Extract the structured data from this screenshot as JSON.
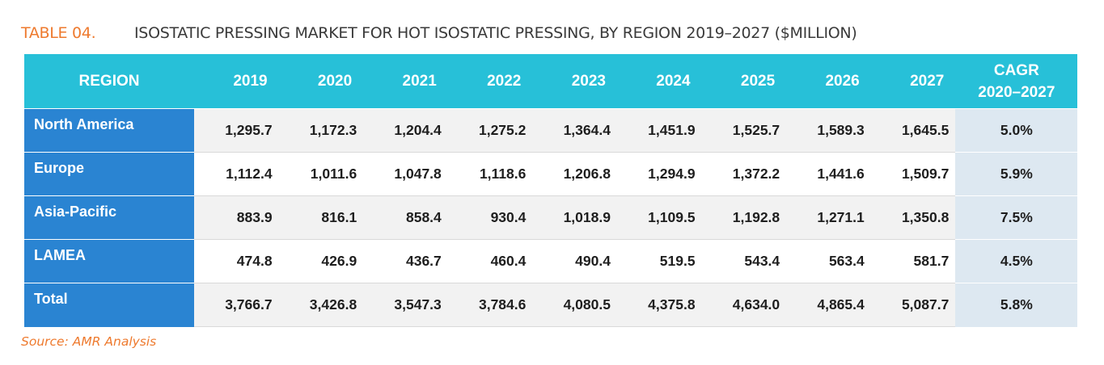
{
  "header": {
    "table_number": "TABLE 04.",
    "title": "ISOSTATIC PRESSING MARKET FOR HOT ISOSTATIC PRESSING, BY REGION 2019–2027 ($MILLION)"
  },
  "source": "Source: AMR Analysis",
  "colors": {
    "header_bg": "#27c0d8",
    "region_bg": "#2a84d2",
    "cagr_bg": "#dde8f1",
    "accent_orange": "#ee7a2e"
  },
  "chart_data": {
    "type": "table",
    "title": "ISOSTATIC PRESSING MARKET FOR HOT ISOSTATIC PRESSING, BY REGION 2019–2027 ($MILLION)",
    "columns": {
      "region": "REGION",
      "years": [
        "2019",
        "2020",
        "2021",
        "2022",
        "2023",
        "2024",
        "2025",
        "2026",
        "2027"
      ],
      "cagr_line1": "CAGR",
      "cagr_line2": "2020–2027"
    },
    "rows": [
      {
        "region": "North America",
        "values": [
          "1,295.7",
          "1,172.3",
          "1,204.4",
          "1,275.2",
          "1,364.4",
          "1,451.9",
          "1,525.7",
          "1,589.3",
          "1,645.5"
        ],
        "cagr": "5.0%"
      },
      {
        "region": "Europe",
        "values": [
          "1,112.4",
          "1,011.6",
          "1,047.8",
          "1,118.6",
          "1,206.8",
          "1,294.9",
          "1,372.2",
          "1,441.6",
          "1,509.7"
        ],
        "cagr": "5.9%"
      },
      {
        "region": "Asia-Pacific",
        "values": [
          "883.9",
          "816.1",
          "858.4",
          "930.4",
          "1,018.9",
          "1,109.5",
          "1,192.8",
          "1,271.1",
          "1,350.8"
        ],
        "cagr": "7.5%"
      },
      {
        "region": "LAMEA",
        "values": [
          "474.8",
          "426.9",
          "436.7",
          "460.4",
          "490.4",
          "519.5",
          "543.4",
          "563.4",
          "581.7"
        ],
        "cagr": "4.5%"
      },
      {
        "region": "Total",
        "values": [
          "3,766.7",
          "3,426.8",
          "3,547.3",
          "3,784.6",
          "4,080.5",
          "4,375.8",
          "4,634.0",
          "4,865.4",
          "5,087.7"
        ],
        "cagr": "5.8%"
      }
    ]
  }
}
